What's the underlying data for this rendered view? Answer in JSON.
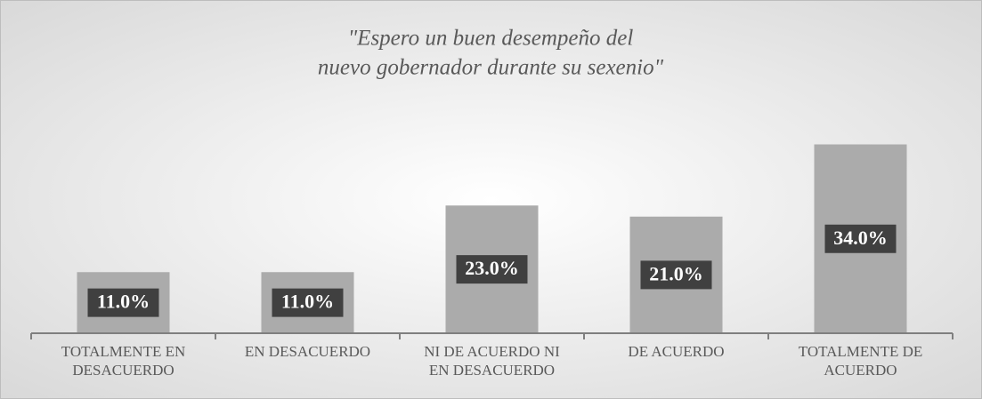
{
  "chart_data": {
    "type": "bar",
    "title": [
      "\"Espero un buen desempeño del",
      "nuevo gobernador durante su sexenio\""
    ],
    "categories": [
      [
        "TOTALMENTE EN",
        "DESACUERDO"
      ],
      [
        "EN DESACUERDO"
      ],
      [
        "NI DE ACUERDO NI",
        "EN DESACUERDO"
      ],
      [
        "DE ACUERDO"
      ],
      [
        "TOTALMENTE DE",
        "ACUERDO"
      ]
    ],
    "values": [
      11,
      11,
      23,
      21,
      34
    ],
    "value_labels": [
      "11.0%",
      "11.0%",
      "23.0%",
      "21.0%",
      "34.0%"
    ],
    "color": "#ababab",
    "ylim": [
      0,
      40
    ]
  }
}
